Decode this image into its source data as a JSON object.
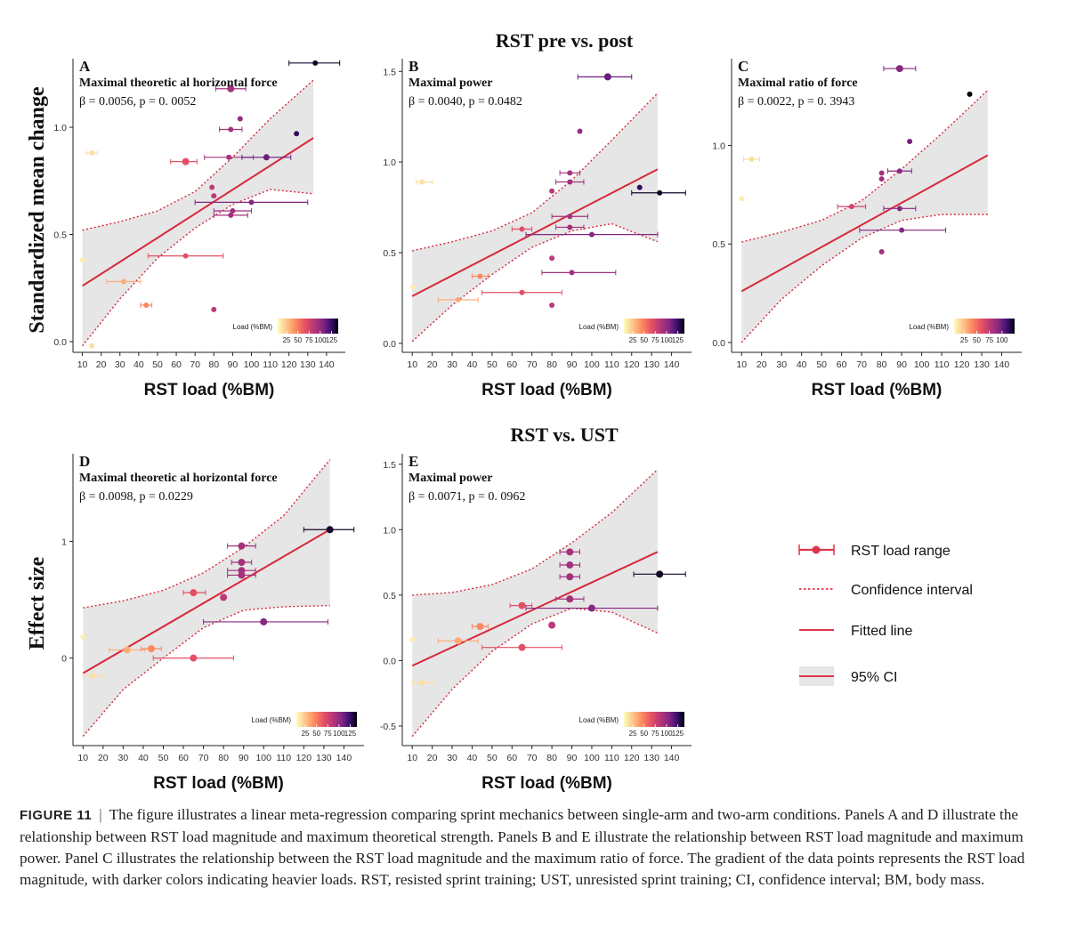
{
  "figure": {
    "section_top": "RST pre vs. post",
    "section_bottom": "RST vs. UST",
    "ylabel_top": "Standardized mean change",
    "ylabel_bottom": "Effect size"
  },
  "colors": {
    "fit": "#d7283b",
    "ci_fill": "#e6e6e6",
    "axis": "#222222"
  },
  "chart_data": [
    {
      "type": "scatter",
      "panel": "A",
      "title": "Maximal theoretic al horizontal force",
      "stat": "β = 0.0056, p = 0. 0052",
      "xlabel": "RST load (%BM)",
      "xlim": [
        5,
        150
      ],
      "xticks": [
        10,
        20,
        30,
        40,
        50,
        60,
        70,
        80,
        90,
        100,
        110,
        120,
        130,
        140
      ],
      "ylim": [
        -0.05,
        1.32
      ],
      "yticks": [
        0.0,
        0.5,
        1.0
      ],
      "ytick_labels": [
        "0.0",
        "0.5",
        "1.0"
      ],
      "fit": {
        "x0": 10,
        "y0": 0.26,
        "x1": 133,
        "y1": 0.95
      },
      "ci_upper": [
        [
          10,
          0.52
        ],
        [
          30,
          0.56
        ],
        [
          50,
          0.61
        ],
        [
          70,
          0.7
        ],
        [
          90,
          0.86
        ],
        [
          110,
          1.04
        ],
        [
          133,
          1.22
        ]
      ],
      "ci_lower": [
        [
          10,
          -0.02
        ],
        [
          30,
          0.2
        ],
        [
          50,
          0.39
        ],
        [
          70,
          0.53
        ],
        [
          90,
          0.64
        ],
        [
          110,
          0.71
        ],
        [
          133,
          0.69
        ]
      ],
      "points": [
        {
          "x": 10,
          "y": 0.38,
          "lo": 10,
          "hi": 10,
          "size": 3
        },
        {
          "x": 15,
          "y": 0.88,
          "lo": 12,
          "hi": 18,
          "size": 3
        },
        {
          "x": 15,
          "y": -0.02,
          "lo": 15,
          "hi": 15,
          "size": 3
        },
        {
          "x": 32,
          "y": 0.28,
          "lo": 23,
          "hi": 41,
          "size": 3
        },
        {
          "x": 44,
          "y": 0.17,
          "lo": 41,
          "hi": 47,
          "size": 3
        },
        {
          "x": 65,
          "y": 0.84,
          "lo": 57,
          "hi": 71,
          "size": 4
        },
        {
          "x": 65,
          "y": 0.4,
          "lo": 45,
          "hi": 85,
          "size": 3
        },
        {
          "x": 79,
          "y": 0.72,
          "lo": 79,
          "hi": 79,
          "size": 3
        },
        {
          "x": 80,
          "y": 0.68,
          "lo": 80,
          "hi": 80,
          "size": 3
        },
        {
          "x": 80,
          "y": 0.15,
          "lo": 80,
          "hi": 80,
          "size": 3
        },
        {
          "x": 89,
          "y": 1.18,
          "lo": 81,
          "hi": 97,
          "size": 4
        },
        {
          "x": 89,
          "y": 0.99,
          "lo": 83,
          "hi": 95,
          "size": 3
        },
        {
          "x": 88,
          "y": 0.86,
          "lo": 75,
          "hi": 101,
          "size": 3
        },
        {
          "x": 90,
          "y": 0.61,
          "lo": 80,
          "hi": 100,
          "size": 3
        },
        {
          "x": 89,
          "y": 0.59,
          "lo": 80,
          "hi": 98,
          "size": 3
        },
        {
          "x": 94,
          "y": 1.04,
          "lo": 94,
          "hi": 94,
          "size": 3
        },
        {
          "x": 100,
          "y": 0.65,
          "lo": 70,
          "hi": 130,
          "size": 3
        },
        {
          "x": 108,
          "y": 0.86,
          "lo": 95,
          "hi": 121,
          "size": 3.5
        },
        {
          "x": 124,
          "y": 0.97,
          "lo": 124,
          "hi": 124,
          "size": 3
        },
        {
          "x": 134,
          "y": 1.3,
          "lo": 120,
          "hi": 147,
          "size": 3
        }
      ],
      "legend": {
        "title": "Load (%BM)",
        "ticks": [
          25,
          50,
          75,
          100,
          125
        ],
        "max": 140
      }
    },
    {
      "type": "scatter",
      "panel": "B",
      "title": "Maximal power",
      "stat": "β = 0.0040, p = 0.0482",
      "xlabel": "RST load (%BM)",
      "xlim": [
        5,
        150
      ],
      "xticks": [
        10,
        20,
        30,
        40,
        50,
        60,
        70,
        80,
        90,
        100,
        110,
        120,
        130,
        140
      ],
      "ylim": [
        -0.05,
        1.57
      ],
      "yticks": [
        0.0,
        0.5,
        1.0,
        1.5
      ],
      "ytick_labels": [
        "0.0",
        "0.5",
        "1.0",
        "1.5"
      ],
      "fit": {
        "x0": 10,
        "y0": 0.26,
        "x1": 133,
        "y1": 0.96
      },
      "ci_upper": [
        [
          10,
          0.51
        ],
        [
          30,
          0.56
        ],
        [
          50,
          0.62
        ],
        [
          70,
          0.72
        ],
        [
          90,
          0.9
        ],
        [
          110,
          1.12
        ],
        [
          133,
          1.38
        ]
      ],
      "ci_lower": [
        [
          10,
          0.01
        ],
        [
          30,
          0.21
        ],
        [
          50,
          0.38
        ],
        [
          70,
          0.53
        ],
        [
          90,
          0.62
        ],
        [
          110,
          0.66
        ],
        [
          133,
          0.56
        ]
      ],
      "points": [
        {
          "x": 10,
          "y": 0.31,
          "lo": 10,
          "hi": 10,
          "size": 3
        },
        {
          "x": 15,
          "y": 0.89,
          "lo": 12,
          "hi": 20,
          "size": 3
        },
        {
          "x": 33,
          "y": 0.24,
          "lo": 23,
          "hi": 43,
          "size": 3
        },
        {
          "x": 44,
          "y": 0.37,
          "lo": 40,
          "hi": 48,
          "size": 3
        },
        {
          "x": 65,
          "y": 0.63,
          "lo": 60,
          "hi": 70,
          "size": 3
        },
        {
          "x": 65,
          "y": 0.28,
          "lo": 45,
          "hi": 85,
          "size": 3
        },
        {
          "x": 80,
          "y": 0.84,
          "lo": 80,
          "hi": 80,
          "size": 3
        },
        {
          "x": 80,
          "y": 0.47,
          "lo": 80,
          "hi": 80,
          "size": 3
        },
        {
          "x": 80,
          "y": 0.21,
          "lo": 80,
          "hi": 80,
          "size": 3
        },
        {
          "x": 89,
          "y": 0.94,
          "lo": 84,
          "hi": 94,
          "size": 3
        },
        {
          "x": 89,
          "y": 0.89,
          "lo": 82,
          "hi": 96,
          "size": 3
        },
        {
          "x": 89,
          "y": 0.7,
          "lo": 80,
          "hi": 98,
          "size": 3
        },
        {
          "x": 89,
          "y": 0.64,
          "lo": 82,
          "hi": 96,
          "size": 3
        },
        {
          "x": 90,
          "y": 0.39,
          "lo": 75,
          "hi": 112,
          "size": 3
        },
        {
          "x": 94,
          "y": 1.17,
          "lo": 94,
          "hi": 94,
          "size": 3
        },
        {
          "x": 100,
          "y": 0.6,
          "lo": 67,
          "hi": 133,
          "size": 3
        },
        {
          "x": 108,
          "y": 1.47,
          "lo": 93,
          "hi": 120,
          "size": 4
        },
        {
          "x": 124,
          "y": 0.86,
          "lo": 124,
          "hi": 124,
          "size": 3
        },
        {
          "x": 134,
          "y": 0.83,
          "lo": 120,
          "hi": 147,
          "size": 3
        }
      ],
      "legend": {
        "title": "Load (%BM)",
        "ticks": [
          25,
          50,
          75,
          100,
          125
        ],
        "max": 140
      }
    },
    {
      "type": "scatter",
      "panel": "C",
      "title": "Maximal ratio of force",
      "stat": "β = 0.0022, p = 0. 3943",
      "xlabel": "RST load (%BM)",
      "xlim": [
        5,
        150
      ],
      "xticks": [
        10,
        20,
        30,
        40,
        50,
        60,
        70,
        80,
        90,
        100,
        110,
        120,
        130,
        140
      ],
      "ylim": [
        -0.05,
        1.44
      ],
      "yticks": [
        0.0,
        0.5,
        1.0
      ],
      "ytick_labels": [
        "0.0",
        "0.5",
        "1.0"
      ],
      "fit": {
        "x0": 10,
        "y0": 0.26,
        "x1": 133,
        "y1": 0.95
      },
      "ci_upper": [
        [
          10,
          0.51
        ],
        [
          30,
          0.56
        ],
        [
          50,
          0.62
        ],
        [
          70,
          0.72
        ],
        [
          90,
          0.88
        ],
        [
          110,
          1.06
        ],
        [
          133,
          1.28
        ]
      ],
      "ci_lower": [
        [
          10,
          0.0
        ],
        [
          30,
          0.22
        ],
        [
          50,
          0.39
        ],
        [
          70,
          0.53
        ],
        [
          90,
          0.62
        ],
        [
          110,
          0.65
        ],
        [
          133,
          0.65
        ]
      ],
      "points": [
        {
          "x": 10,
          "y": 0.73,
          "lo": 10,
          "hi": 10,
          "size": 3
        },
        {
          "x": 15,
          "y": 0.93,
          "lo": 11,
          "hi": 19,
          "size": 3
        },
        {
          "x": 65,
          "y": 0.69,
          "lo": 58,
          "hi": 72,
          "size": 3
        },
        {
          "x": 80,
          "y": 0.86,
          "lo": 80,
          "hi": 80,
          "size": 3
        },
        {
          "x": 80,
          "y": 0.83,
          "lo": 80,
          "hi": 80,
          "size": 3
        },
        {
          "x": 80,
          "y": 0.46,
          "lo": 80,
          "hi": 80,
          "size": 3
        },
        {
          "x": 89,
          "y": 1.39,
          "lo": 81,
          "hi": 97,
          "size": 4
        },
        {
          "x": 89,
          "y": 0.87,
          "lo": 83,
          "hi": 95,
          "size": 3
        },
        {
          "x": 89,
          "y": 0.68,
          "lo": 81,
          "hi": 97,
          "size": 3
        },
        {
          "x": 90,
          "y": 0.57,
          "lo": 69,
          "hi": 112,
          "size": 3
        },
        {
          "x": 94,
          "y": 1.02,
          "lo": 94,
          "hi": 94,
          "size": 3
        },
        {
          "x": 124,
          "y": 1.26,
          "lo": 124,
          "hi": 124,
          "size": 3
        }
      ],
      "legend": {
        "title": "Load (%BM)",
        "ticks": [
          25,
          50,
          75,
          100
        ],
        "max": 125
      }
    },
    {
      "type": "scatter",
      "panel": "D",
      "title": "Maximal theoretic al horizontal force",
      "stat": "β = 0.0098, p = 0.0229",
      "xlabel": "RST load (%BM)",
      "xlim": [
        5,
        150
      ],
      "xticks": [
        10,
        20,
        30,
        40,
        50,
        60,
        70,
        80,
        90,
        100,
        110,
        120,
        130,
        140
      ],
      "ylim": [
        -0.75,
        1.75
      ],
      "yticks": [
        0,
        1
      ],
      "ytick_labels": [
        "0",
        "1"
      ],
      "fit": {
        "x0": 10,
        "y0": -0.13,
        "x1": 133,
        "y1": 1.1
      },
      "ci_upper": [
        [
          10,
          0.43
        ],
        [
          30,
          0.49
        ],
        [
          50,
          0.58
        ],
        [
          70,
          0.73
        ],
        [
          90,
          0.95
        ],
        [
          110,
          1.22
        ],
        [
          133,
          1.7
        ]
      ],
      "ci_lower": [
        [
          10,
          -0.67
        ],
        [
          30,
          -0.27
        ],
        [
          50,
          0.0
        ],
        [
          70,
          0.26
        ],
        [
          90,
          0.41
        ],
        [
          110,
          0.44
        ],
        [
          133,
          0.45
        ]
      ],
      "points": [
        {
          "x": 10,
          "y": 0.18,
          "lo": 10,
          "hi": 10,
          "size": 3
        },
        {
          "x": 15,
          "y": -0.15,
          "lo": 10,
          "hi": 20,
          "size": 3
        },
        {
          "x": 32,
          "y": 0.07,
          "lo": 23,
          "hi": 41,
          "size": 4
        },
        {
          "x": 44,
          "y": 0.08,
          "lo": 39,
          "hi": 49,
          "size": 4
        },
        {
          "x": 65,
          "y": 0.56,
          "lo": 60,
          "hi": 71,
          "size": 4
        },
        {
          "x": 65,
          "y": 0.0,
          "lo": 45,
          "hi": 85,
          "size": 4
        },
        {
          "x": 80,
          "y": 0.52,
          "lo": 80,
          "hi": 80,
          "size": 4
        },
        {
          "x": 89,
          "y": 0.96,
          "lo": 82,
          "hi": 96,
          "size": 4
        },
        {
          "x": 89,
          "y": 0.82,
          "lo": 84,
          "hi": 94,
          "size": 4
        },
        {
          "x": 89,
          "y": 0.75,
          "lo": 82,
          "hi": 96,
          "size": 4
        },
        {
          "x": 89,
          "y": 0.71,
          "lo": 82,
          "hi": 96,
          "size": 4
        },
        {
          "x": 100,
          "y": 0.31,
          "lo": 70,
          "hi": 132,
          "size": 4
        },
        {
          "x": 133,
          "y": 1.1,
          "lo": 120,
          "hi": 145,
          "size": 4
        }
      ],
      "legend": {
        "title": "Load (%BM)",
        "ticks": [
          25,
          50,
          75,
          100,
          125
        ],
        "max": 140
      }
    },
    {
      "type": "scatter",
      "panel": "E",
      "title": "Maximal power",
      "stat": "β = 0.0071, p = 0. 0962",
      "xlabel": "RST load (%BM)",
      "xlim": [
        5,
        150
      ],
      "xticks": [
        10,
        20,
        30,
        40,
        50,
        60,
        70,
        80,
        90,
        100,
        110,
        120,
        130,
        140
      ],
      "ylim": [
        -0.65,
        1.58
      ],
      "yticks": [
        -0.5,
        0.0,
        0.5,
        1.0,
        1.5
      ],
      "ytick_labels": [
        "-0.5",
        "0.0",
        "0.5",
        "1.0",
        "1.5"
      ],
      "fit": {
        "x0": 10,
        "y0": -0.04,
        "x1": 133,
        "y1": 0.83
      },
      "ci_upper": [
        [
          10,
          0.5
        ],
        [
          30,
          0.52
        ],
        [
          50,
          0.58
        ],
        [
          70,
          0.7
        ],
        [
          90,
          0.9
        ],
        [
          110,
          1.13
        ],
        [
          133,
          1.46
        ]
      ],
      "ci_lower": [
        [
          10,
          -0.58
        ],
        [
          30,
          -0.22
        ],
        [
          50,
          0.07
        ],
        [
          70,
          0.28
        ],
        [
          90,
          0.4
        ],
        [
          110,
          0.37
        ],
        [
          133,
          0.21
        ]
      ],
      "points": [
        {
          "x": 10,
          "y": 0.16,
          "lo": 10,
          "hi": 10,
          "size": 3
        },
        {
          "x": 15,
          "y": -0.17,
          "lo": 10,
          "hi": 20,
          "size": 3
        },
        {
          "x": 33,
          "y": 0.15,
          "lo": 23,
          "hi": 43,
          "size": 4
        },
        {
          "x": 44,
          "y": 0.26,
          "lo": 40,
          "hi": 48,
          "size": 4
        },
        {
          "x": 65,
          "y": 0.42,
          "lo": 59,
          "hi": 70,
          "size": 4
        },
        {
          "x": 65,
          "y": 0.1,
          "lo": 45,
          "hi": 85,
          "size": 4
        },
        {
          "x": 80,
          "y": 0.27,
          "lo": 80,
          "hi": 80,
          "size": 4
        },
        {
          "x": 89,
          "y": 0.83,
          "lo": 84,
          "hi": 94,
          "size": 4
        },
        {
          "x": 89,
          "y": 0.73,
          "lo": 84,
          "hi": 94,
          "size": 4
        },
        {
          "x": 89,
          "y": 0.64,
          "lo": 84,
          "hi": 94,
          "size": 4
        },
        {
          "x": 89,
          "y": 0.47,
          "lo": 82,
          "hi": 96,
          "size": 4
        },
        {
          "x": 100,
          "y": 0.4,
          "lo": 67,
          "hi": 133,
          "size": 4
        },
        {
          "x": 134,
          "y": 0.66,
          "lo": 121,
          "hi": 147,
          "size": 4
        }
      ],
      "legend": {
        "title": "Load (%BM)",
        "ticks": [
          25,
          50,
          75,
          100,
          125
        ],
        "max": 140
      }
    }
  ],
  "legend": {
    "items": [
      {
        "label": "RST load range"
      },
      {
        "label": "Confidence interval"
      },
      {
        "label": "Fitted line"
      },
      {
        "label": "95% CI"
      }
    ]
  },
  "caption": {
    "label": "FIGURE 11",
    "separator": "|",
    "text": "The figure illustrates a linear meta-regression comparing sprint mechanics between single-arm and two-arm conditions. Panels A and D illustrate the relationship between RST load magnitude and maximum theoretical strength. Panels B and E illustrate the relationship between RST load magnitude and maximum power. Panel C illustrates the relationship between the RST load magnitude and the maximum ratio of force. The gradient of the data points represents the RST load magnitude, with darker colors indicating heavier loads. RST, resisted sprint training; UST, unresisted sprint training; CI, confidence interval; BM, body mass."
  }
}
